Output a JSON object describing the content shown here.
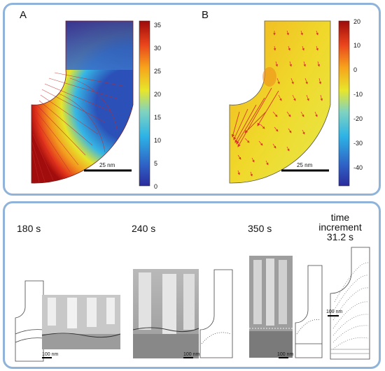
{
  "panel_a": {
    "label": "A",
    "scale_bar": "25 nm",
    "colorbar_ticks": [
      "35",
      "30",
      "25",
      "20",
      "15",
      "10",
      "5",
      "0"
    ]
  },
  "panel_b": {
    "label": "B",
    "scale_bar": "25 nm",
    "colorbar_ticks": [
      "20",
      "10",
      "0",
      "-10",
      "-20",
      "-30",
      "-40"
    ]
  },
  "series": {
    "t180": "180 s",
    "t240": "240 s",
    "t350": "350 s",
    "increment_line1": "time",
    "increment_line2": "increment",
    "increment_line3": "31.2 s"
  },
  "scale_bars": {
    "s180": "100 nm",
    "s240": "100 nm",
    "s350": "100 nm",
    "sinc": "100 nm"
  },
  "colors": {
    "frame": "#8fb3d9",
    "jet_high": "#9e0a0a",
    "jet_low": "#2b2c9c"
  }
}
